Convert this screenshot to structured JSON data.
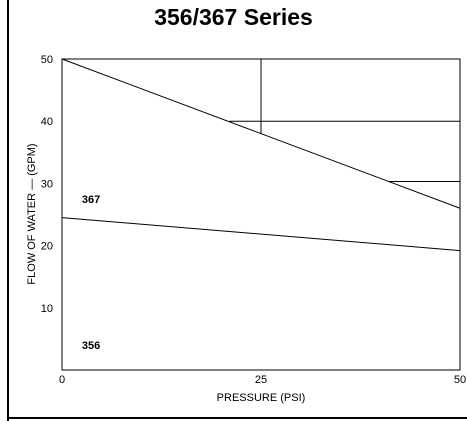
{
  "chart_data": {
    "type": "line",
    "title": "356/367 Series",
    "xlabel": "PRESSURE (PSI)",
    "ylabel": "FLOW OF WATER — (GPM)",
    "xlim": [
      0,
      50
    ],
    "ylim": [
      0,
      50
    ],
    "x_ticks": [
      "0",
      "25",
      "50"
    ],
    "y_ticks": [
      "10",
      "20",
      "30",
      "40",
      "50"
    ],
    "series": [
      {
        "name": "367",
        "x": [
          0,
          50
        ],
        "y": [
          50,
          26
        ]
      },
      {
        "name": "356",
        "x": [
          0,
          50
        ],
        "y": [
          24.5,
          19.2
        ]
      }
    ],
    "reference_lines": [
      {
        "orientation": "vertical",
        "x": 25,
        "y_from": 38,
        "y_to": 50
      },
      {
        "orientation": "horizontal",
        "y": 40,
        "x_from": 21,
        "x_to": 50
      },
      {
        "orientation": "horizontal",
        "y": 30.3,
        "x_from": 41,
        "x_to": 50
      }
    ],
    "grid": false,
    "legend": "none"
  },
  "colors": {
    "line": "#000000",
    "background": "#ffffff"
  }
}
